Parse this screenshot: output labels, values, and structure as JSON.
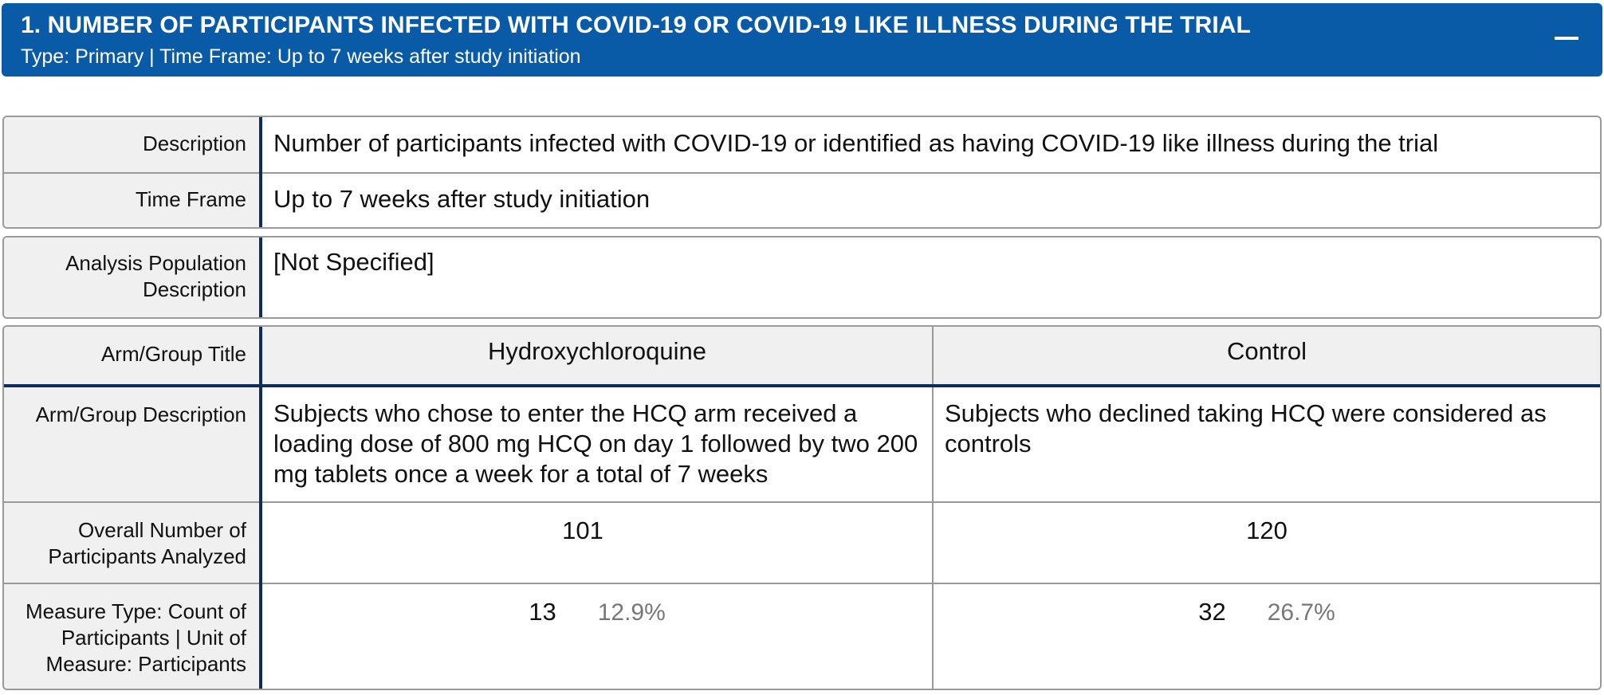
{
  "header": {
    "title": "1. NUMBER OF PARTICIPANTS INFECTED WITH COVID-19 OR COVID-19 LIKE ILLNESS DURING THE TRIAL",
    "subtitle": "Type: Primary | Time Frame: Up to 7 weeks after study initiation"
  },
  "info": {
    "description_label": "Description",
    "description_value": "Number of participants infected with COVID-19 or identified as having COVID-19 like illness during the trial",
    "timeframe_label": "Time Frame",
    "timeframe_value": "Up to 7 weeks after study initiation"
  },
  "population": {
    "label": "Analysis Population Description",
    "value": "[Not Specified]"
  },
  "results": {
    "arm_title_label": "Arm/Group Title",
    "arm_desc_label": "Arm/Group Description",
    "overall_label": "Overall Number of Participants Analyzed",
    "measure_label": "Measure Type: Count of Participants | Unit of Measure: Participants",
    "arms": [
      {
        "title": "Hydroxychloroquine",
        "description": "Subjects who chose to enter the HCQ arm received a loading dose of 800 mg HCQ on day 1 followed by two 200 mg tablets once a week for a total of 7 weeks",
        "overall": "101",
        "count": "13",
        "percent": "12.9%"
      },
      {
        "title": "Control",
        "description": "Subjects who declined taking HCQ were considered as controls",
        "overall": "120",
        "count": "32",
        "percent": "26.7%"
      }
    ]
  }
}
